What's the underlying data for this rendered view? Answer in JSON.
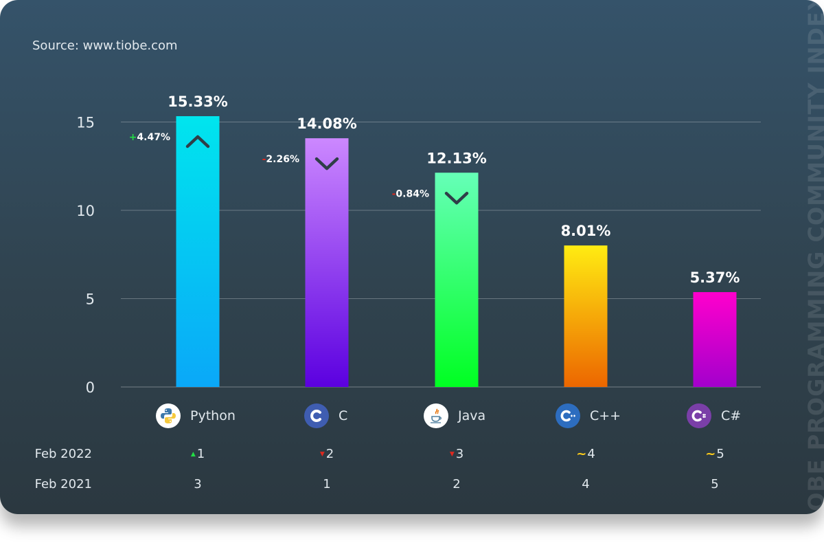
{
  "source": "Source: www.tiobe.com",
  "side_title": "TIOBE PROGRAMMING COMMUNITY INDEX",
  "chart_data": {
    "type": "bar",
    "categories": [
      "Python",
      "C",
      "Java",
      "C++",
      "C#"
    ],
    "values": [
      15.33,
      14.08,
      12.13,
      8.01,
      5.37
    ],
    "value_labels": [
      "15.33%",
      "14.08%",
      "12.13%",
      "8.01%",
      "5.37%"
    ],
    "changes": [
      "+4.47%",
      "-2.26%",
      "-0.84%",
      "",
      ""
    ],
    "change_direction": [
      "up",
      "down",
      "down",
      "none",
      "none"
    ],
    "ylim": [
      0,
      15.5
    ],
    "yticks": [
      0,
      5,
      10,
      15
    ],
    "grid": true,
    "bar_colors": [
      [
        "#00e5ee",
        "#0aa8f8"
      ],
      [
        "#cc88ff",
        "#5b00e0"
      ],
      [
        "#66ffb8",
        "#00ff22"
      ],
      [
        "#ffec12",
        "#ec6600"
      ],
      [
        "#ff00cc",
        "#a300cc"
      ]
    ]
  },
  "rank_table": {
    "rows": [
      {
        "label": "Feb 2022",
        "cells": [
          {
            "marker": "up",
            "value": "1"
          },
          {
            "marker": "down",
            "value": "2"
          },
          {
            "marker": "down",
            "value": "3"
          },
          {
            "marker": "same",
            "value": "4"
          },
          {
            "marker": "same",
            "value": "5"
          }
        ]
      },
      {
        "label": "Feb 2021",
        "cells": [
          {
            "marker": "",
            "value": "3"
          },
          {
            "marker": "",
            "value": "1"
          },
          {
            "marker": "",
            "value": "2"
          },
          {
            "marker": "",
            "value": "4"
          },
          {
            "marker": "",
            "value": "5"
          }
        ]
      }
    ]
  },
  "icons": [
    "python-icon",
    "c-icon",
    "java-icon",
    "cpp-icon",
    "csharp-icon"
  ],
  "colors": {
    "up": "#22dd44",
    "down": "#e0281e",
    "same": "#ffcd1a",
    "arrow": "#2f3e48"
  }
}
